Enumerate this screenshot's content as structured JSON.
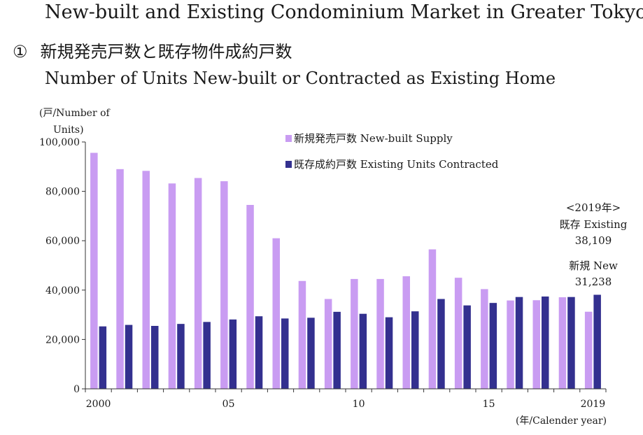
{
  "header": {
    "title": "New-built and Existing Condominium Market in Greater Tokyo",
    "subtitle_num": "①",
    "subtitle_jp": "新規発売戸数と既存物件成約戸数",
    "subtitle_en": "Number of Units New-built or Contracted as Existing Home"
  },
  "chart_data": {
    "type": "bar",
    "ylabel_line1": "(戸/Number of",
    "ylabel_line2": "Units)",
    "xlabel": "(年/Calender year)",
    "ylim": [
      0,
      100000
    ],
    "yticks": [
      0,
      20000,
      40000,
      60000,
      80000,
      100000
    ],
    "ytick_labels": [
      "0",
      "20,000",
      "40,000",
      "60,000",
      "80,000",
      "100,000"
    ],
    "categories": [
      "2000",
      "2001",
      "2002",
      "2003",
      "2004",
      "2005",
      "2006",
      "2007",
      "2008",
      "2009",
      "2010",
      "2011",
      "2012",
      "2013",
      "2014",
      "2015",
      "2016",
      "2017",
      "2018",
      "2019"
    ],
    "x_tick_labels": [
      {
        "index": 0,
        "label": "2000"
      },
      {
        "index": 5,
        "label": "05"
      },
      {
        "index": 10,
        "label": "10"
      },
      {
        "index": 15,
        "label": "15"
      },
      {
        "index": 19,
        "label": "2019"
      }
    ],
    "series": [
      {
        "name": "新規発売戸数 New-built Supply",
        "color": "#c99cf2",
        "values": [
          95600,
          89000,
          88300,
          83200,
          85400,
          84100,
          74500,
          61000,
          43700,
          36400,
          44500,
          44500,
          45600,
          56500,
          45000,
          40400,
          35800,
          35900,
          37100,
          31238
        ]
      },
      {
        "name": "既存成約戸数 Existing Units Contracted",
        "color": "#33308f",
        "values": [
          25300,
          25900,
          25500,
          26300,
          27100,
          28100,
          29400,
          28500,
          28800,
          31200,
          30400,
          29000,
          31400,
          36400,
          33800,
          34800,
          37200,
          37400,
          37200,
          38109
        ]
      }
    ],
    "legend_position": "top-center",
    "grid": false,
    "annotations": {
      "year": "<2019年>",
      "existing_label": "既存 Existing",
      "existing_value": "38,109",
      "new_label": "新規 New",
      "new_value": "31,238"
    }
  }
}
